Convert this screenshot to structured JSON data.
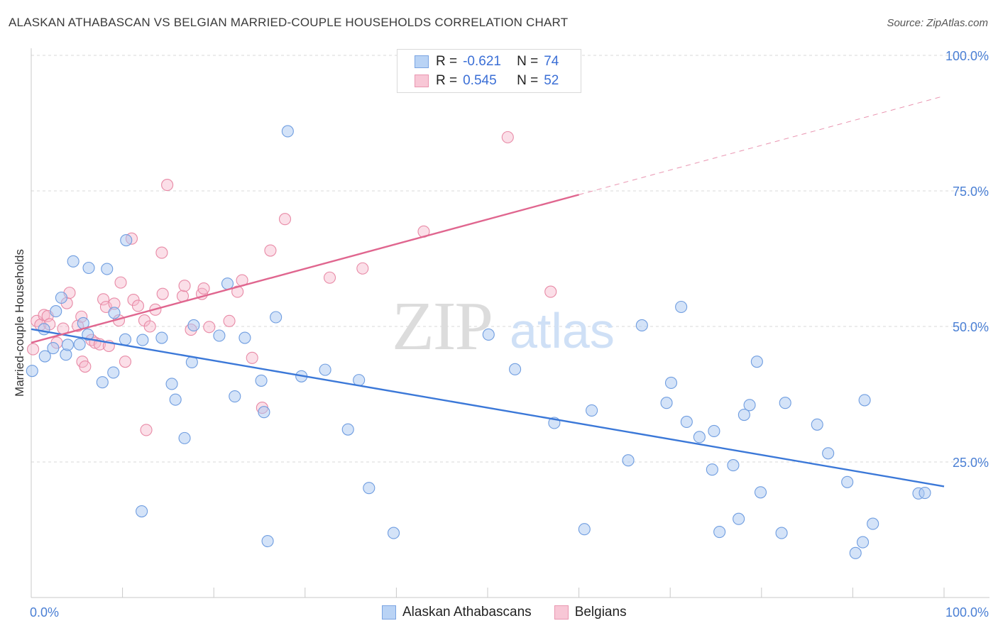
{
  "title": "ALASKAN ATHABASCAN VS BELGIAN MARRIED-COUPLE HOUSEHOLDS CORRELATION CHART",
  "source": "Source: ZipAtlas.com",
  "watermark": {
    "zip": "ZIP",
    "atlas": "atlas"
  },
  "legend": {
    "rows": [
      {
        "r_label": "R =",
        "r_value": "-0.621",
        "n_label": "N =",
        "n_value": "74"
      },
      {
        "r_label": "R =",
        "r_value": "0.545",
        "n_label": "N =",
        "n_value": "52"
      }
    ]
  },
  "bottom_legend": [
    "Alaskan Athabascans",
    "Belgians"
  ],
  "colors": {
    "blue_fill": "#a9c8f2",
    "blue_stroke": "#6f9de0",
    "blue_line": "#3b78d8",
    "pink_fill": "#f6b7cb",
    "pink_stroke": "#e88aa6",
    "pink_line": "#e0668f",
    "grid": "#d8d8d8",
    "tick_text": "#4a7fd4"
  },
  "chart_data": {
    "type": "scatter",
    "title": "ALASKAN ATHABASCAN VS BELGIAN MARRIED-COUPLE HOUSEHOLDS CORRELATION CHART",
    "xlabel": "",
    "ylabel": "Married-couple Households",
    "xlim": [
      0,
      100
    ],
    "ylim": [
      0,
      100
    ],
    "x_tick_labels": [
      "0.0%",
      "100.0%"
    ],
    "y_ticks": [
      25,
      50,
      75,
      100
    ],
    "y_tick_labels": [
      "25.0%",
      "50.0%",
      "75.0%",
      "100.0%"
    ],
    "series": [
      {
        "name": "Alaskan Athabascans",
        "r": -0.621,
        "n": 74,
        "trend": {
          "x": [
            0,
            100
          ],
          "y": [
            49.5,
            20.5
          ]
        },
        "points": [
          [
            0.1,
            41.8
          ],
          [
            1.4,
            49.5
          ],
          [
            1.5,
            44.5
          ],
          [
            2.4,
            46.0
          ],
          [
            2.7,
            52.8
          ],
          [
            3.3,
            55.3
          ],
          [
            3.8,
            44.8
          ],
          [
            4.0,
            46.6
          ],
          [
            4.6,
            62.0
          ],
          [
            5.3,
            46.7
          ],
          [
            5.7,
            50.6
          ],
          [
            6.2,
            48.5
          ],
          [
            6.3,
            60.8
          ],
          [
            7.8,
            39.7
          ],
          [
            8.3,
            60.6
          ],
          [
            9.0,
            41.5
          ],
          [
            9.1,
            52.5
          ],
          [
            10.3,
            47.6
          ],
          [
            10.4,
            65.9
          ],
          [
            12.1,
            15.9
          ],
          [
            12.2,
            47.5
          ],
          [
            14.3,
            47.9
          ],
          [
            15.4,
            39.4
          ],
          [
            15.8,
            36.5
          ],
          [
            16.8,
            29.4
          ],
          [
            17.6,
            43.4
          ],
          [
            17.8,
            50.2
          ],
          [
            20.6,
            48.3
          ],
          [
            21.5,
            57.9
          ],
          [
            22.3,
            37.1
          ],
          [
            23.4,
            47.9
          ],
          [
            25.2,
            40.0
          ],
          [
            25.5,
            34.2
          ],
          [
            25.9,
            10.4
          ],
          [
            26.8,
            51.7
          ],
          [
            28.1,
            86.0
          ],
          [
            29.6,
            40.8
          ],
          [
            32.2,
            42.0
          ],
          [
            34.7,
            31.0
          ],
          [
            35.9,
            40.1
          ],
          [
            37.0,
            20.2
          ],
          [
            39.7,
            11.9
          ],
          [
            50.1,
            48.5
          ],
          [
            53.0,
            42.1
          ],
          [
            57.3,
            32.2
          ],
          [
            60.6,
            12.6
          ],
          [
            61.4,
            34.5
          ],
          [
            65.4,
            25.3
          ],
          [
            66.9,
            50.2
          ],
          [
            69.6,
            35.9
          ],
          [
            70.1,
            39.6
          ],
          [
            71.2,
            53.6
          ],
          [
            71.8,
            32.4
          ],
          [
            73.2,
            29.6
          ],
          [
            74.6,
            23.6
          ],
          [
            74.8,
            30.7
          ],
          [
            75.4,
            12.1
          ],
          [
            76.9,
            24.4
          ],
          [
            77.5,
            14.5
          ],
          [
            78.1,
            33.7
          ],
          [
            78.7,
            35.5
          ],
          [
            79.5,
            43.5
          ],
          [
            79.9,
            19.4
          ],
          [
            82.2,
            11.9
          ],
          [
            82.6,
            35.9
          ],
          [
            86.1,
            31.9
          ],
          [
            87.3,
            26.6
          ],
          [
            89.4,
            21.3
          ],
          [
            90.3,
            8.2
          ],
          [
            91.1,
            10.2
          ],
          [
            91.3,
            36.4
          ],
          [
            92.2,
            13.6
          ],
          [
            97.2,
            19.2
          ],
          [
            97.9,
            19.3
          ]
        ]
      },
      {
        "name": "Belgians",
        "r": 0.545,
        "n": 52,
        "trend": {
          "x": [
            0,
            60
          ],
          "y": [
            47.0,
            74.3
          ]
        },
        "trend_dashed": {
          "x": [
            60,
            100
          ],
          "y": [
            74.3,
            92.5
          ]
        },
        "points": [
          [
            0.2,
            45.8
          ],
          [
            0.6,
            51.0
          ],
          [
            1.0,
            50.3
          ],
          [
            1.4,
            52.1
          ],
          [
            1.8,
            51.9
          ],
          [
            2.0,
            50.4
          ],
          [
            2.8,
            47.0
          ],
          [
            3.5,
            49.6
          ],
          [
            3.9,
            54.3
          ],
          [
            4.2,
            56.2
          ],
          [
            5.1,
            50.1
          ],
          [
            5.5,
            51.8
          ],
          [
            5.6,
            43.5
          ],
          [
            5.9,
            42.6
          ],
          [
            6.6,
            47.5
          ],
          [
            7.0,
            47.0
          ],
          [
            7.5,
            46.7
          ],
          [
            7.9,
            55.0
          ],
          [
            8.2,
            53.6
          ],
          [
            8.5,
            46.4
          ],
          [
            9.1,
            54.2
          ],
          [
            9.6,
            51.1
          ],
          [
            9.8,
            58.1
          ],
          [
            10.3,
            43.5
          ],
          [
            11.0,
            66.2
          ],
          [
            11.2,
            54.9
          ],
          [
            11.7,
            53.8
          ],
          [
            12.4,
            51.1
          ],
          [
            12.6,
            30.9
          ],
          [
            13.0,
            50.0
          ],
          [
            13.6,
            53.1
          ],
          [
            14.3,
            63.6
          ],
          [
            14.4,
            56.0
          ],
          [
            14.9,
            76.1
          ],
          [
            16.6,
            55.6
          ],
          [
            16.8,
            57.5
          ],
          [
            17.5,
            49.4
          ],
          [
            18.7,
            56.0
          ],
          [
            18.9,
            57.0
          ],
          [
            19.5,
            49.9
          ],
          [
            21.7,
            51.0
          ],
          [
            22.6,
            56.4
          ],
          [
            23.1,
            58.5
          ],
          [
            24.2,
            44.2
          ],
          [
            25.3,
            35.0
          ],
          [
            26.2,
            64.0
          ],
          [
            27.8,
            69.8
          ],
          [
            32.7,
            59.0
          ],
          [
            36.3,
            60.7
          ],
          [
            43.0,
            67.5
          ],
          [
            52.2,
            84.9
          ],
          [
            56.9,
            56.4
          ]
        ]
      }
    ]
  }
}
